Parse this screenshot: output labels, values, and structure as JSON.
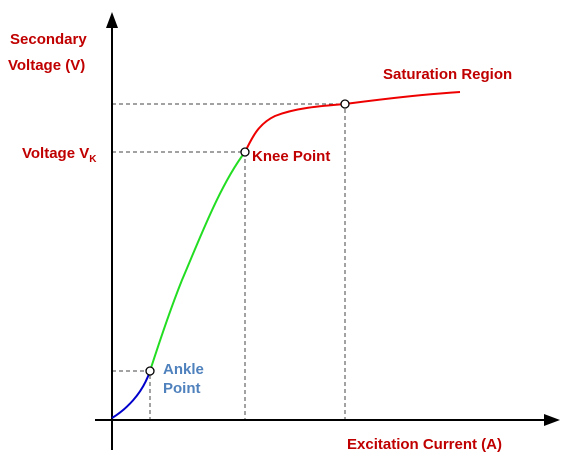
{
  "y_axis_label": [
    "Secondary",
    "Voltage (V)"
  ],
  "x_axis_label": "Excitation Current (A)",
  "voltage_label": {
    "text": "Voltage V",
    "subscript": "K"
  },
  "points": {
    "knee": "Knee Point",
    "saturation": "Saturation Region",
    "ankle": [
      "Ankle",
      "Point"
    ]
  }
}
